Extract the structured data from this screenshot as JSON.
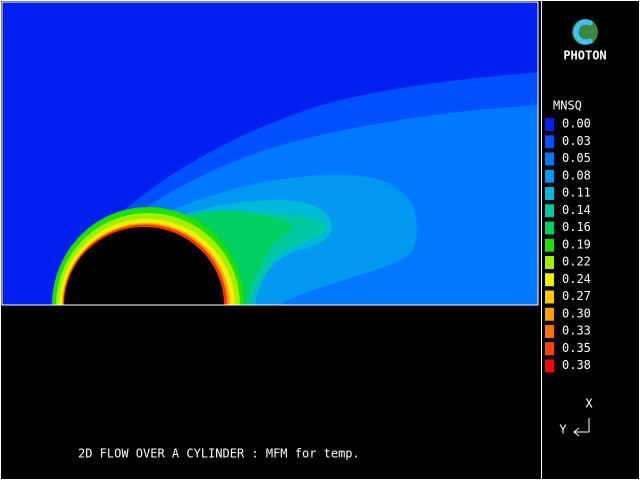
{
  "logo": {
    "text": "PHOTON"
  },
  "legend": {
    "title": "MNSQ",
    "items": [
      {
        "label": "0.00",
        "color": "#0020f0"
      },
      {
        "label": "0.03",
        "color": "#0050ff"
      },
      {
        "label": "0.05",
        "color": "#0078ff"
      },
      {
        "label": "0.08",
        "color": "#0098f0"
      },
      {
        "label": "0.11",
        "color": "#00b8d8"
      },
      {
        "label": "0.14",
        "color": "#00c8a0"
      },
      {
        "label": "0.16",
        "color": "#00d060"
      },
      {
        "label": "0.19",
        "color": "#20e000"
      },
      {
        "label": "0.22",
        "color": "#a0f000"
      },
      {
        "label": "0.24",
        "color": "#f0f000"
      },
      {
        "label": "0.27",
        "color": "#ffc800"
      },
      {
        "label": "0.30",
        "color": "#ffa000"
      },
      {
        "label": "0.33",
        "color": "#ff7000"
      },
      {
        "label": "0.35",
        "color": "#ff4000"
      },
      {
        "label": "0.38",
        "color": "#ff0000"
      }
    ]
  },
  "axes": {
    "x": "X",
    "y": "Y"
  },
  "caption": "2D FLOW OVER A CYLINDER : MFM for temp."
}
